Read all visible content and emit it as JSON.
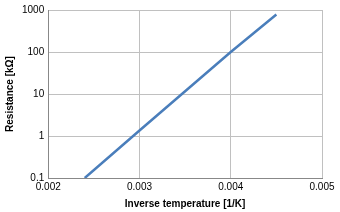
{
  "chart_data": {
    "type": "line",
    "x_label": "Inverse temperature [1/K]",
    "y_label": "Resistance [kΩ]",
    "x": [
      0.0024,
      0.003,
      0.004,
      0.0045
    ],
    "values": [
      0.1,
      1.35,
      100,
      780
    ],
    "color": "#4a7ebb",
    "xlim": [
      0.002,
      0.005
    ],
    "xticks": [
      0.002,
      0.003,
      0.004,
      0.005
    ],
    "ylim": [
      0.1,
      1000
    ],
    "yticks": [
      0.1,
      1,
      10,
      100,
      1000
    ],
    "log": "y",
    "grid": true
  }
}
